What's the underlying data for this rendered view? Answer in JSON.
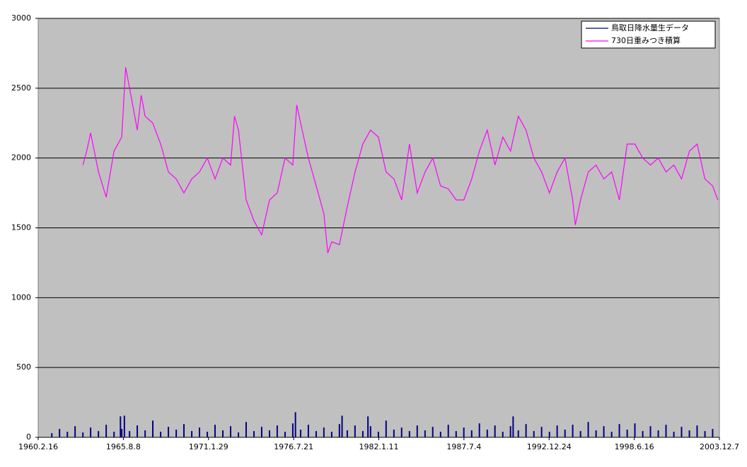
{
  "chart_data": {
    "type": "line",
    "xlim": [
      "1960.2.16",
      "2003.12.7"
    ],
    "xticks": [
      "1960.2.16",
      "1965.8.8",
      "1971.1.29",
      "1976.7.21",
      "1982.1.11",
      "1987.7.4",
      "1992.12.24",
      "1998.6.16",
      "2003.12.7"
    ],
    "ylim": [
      0,
      3000
    ],
    "yticks": [
      0,
      500,
      1000,
      1500,
      2000,
      2500,
      3000
    ],
    "grid": true,
    "legend": "top-right",
    "series": [
      {
        "name": "鳥取日降水量生データ",
        "color": "#000080",
        "style": "spikes",
        "x": [
          "1961.1.1",
          "1961.7.1",
          "1962.1.1",
          "1962.7.1",
          "1963.1.1",
          "1963.7.1",
          "1964.1.1",
          "1964.7.1",
          "1965.1.1",
          "1965.6.1",
          "1965.7.1",
          "1965.9.1",
          "1966.1.1",
          "1966.7.1",
          "1967.1.1",
          "1967.7.1",
          "1968.1.1",
          "1968.7.1",
          "1969.1.1",
          "1969.7.1",
          "1970.1.1",
          "1970.7.1",
          "1971.1.1",
          "1971.7.1",
          "1972.1.1",
          "1972.7.1",
          "1973.1.1",
          "1973.7.1",
          "1974.1.1",
          "1974.7.1",
          "1975.1.1",
          "1975.7.1",
          "1976.1.1",
          "1976.7.1",
          "1976.9.1",
          "1977.1.1",
          "1977.7.1",
          "1978.1.1",
          "1978.7.1",
          "1979.1.1",
          "1979.7.1",
          "1979.9.1",
          "1980.1.1",
          "1980.7.1",
          "1981.1.1",
          "1981.5.1",
          "1981.7.1",
          "1982.1.1",
          "1982.7.1",
          "1983.1.1",
          "1983.7.1",
          "1984.1.1",
          "1984.7.1",
          "1985.1.1",
          "1985.7.1",
          "1986.1.1",
          "1986.7.1",
          "1987.1.1",
          "1987.7.1",
          "1988.1.1",
          "1988.7.1",
          "1989.1.1",
          "1989.7.1",
          "1990.1.1",
          "1990.7.1",
          "1990.9.1",
          "1991.1.1",
          "1991.7.1",
          "1992.1.1",
          "1992.7.1",
          "1993.1.1",
          "1993.7.1",
          "1994.1.1",
          "1994.7.1",
          "1995.1.1",
          "1995.7.1",
          "1996.1.1",
          "1996.7.1",
          "1997.1.1",
          "1997.7.1",
          "1998.1.1",
          "1998.7.1",
          "1999.1.1",
          "1999.7.1",
          "2000.1.1",
          "2000.7.1",
          "2001.1.1",
          "2001.7.1",
          "2002.1.1",
          "2002.7.1",
          "2003.1.1",
          "2003.7.1"
        ],
        "values": [
          30,
          60,
          40,
          80,
          35,
          70,
          45,
          90,
          40,
          150,
          60,
          155,
          45,
          85,
          50,
          120,
          40,
          75,
          55,
          95,
          45,
          70,
          40,
          90,
          50,
          80,
          35,
          110,
          45,
          75,
          50,
          85,
          40,
          100,
          180,
          55,
          90,
          45,
          70,
          40,
          95,
          155,
          50,
          85,
          45,
          150,
          80,
          40,
          120,
          55,
          70,
          45,
          85,
          50,
          75,
          40,
          90,
          45,
          70,
          50,
          100,
          55,
          85,
          40,
          80,
          150,
          50,
          95,
          45,
          75,
          40,
          85,
          55,
          90,
          45,
          110,
          50,
          80,
          40,
          95,
          55,
          100,
          45,
          80,
          50,
          90,
          40,
          75,
          50,
          85,
          45,
          60
        ]
      },
      {
        "name": "730日重みつき積算",
        "color": "#ff00ff",
        "x": [
          "1963.1.1",
          "1963.4.1",
          "1963.7.1",
          "1964.1.1",
          "1964.7.1",
          "1965.1.1",
          "1965.7.1",
          "1965.10.1",
          "1966.1.1",
          "1966.7.1",
          "1966.10.1",
          "1967.1.1",
          "1967.7.1",
          "1968.1.1",
          "1968.7.1",
          "1969.1.1",
          "1969.7.1",
          "1970.1.1",
          "1970.7.1",
          "1971.1.1",
          "1971.7.1",
          "1972.1.1",
          "1972.7.1",
          "1972.10.1",
          "1973.1.1",
          "1973.7.1",
          "1974.1.1",
          "1974.7.1",
          "1975.1.1",
          "1975.7.1",
          "1976.1.1",
          "1976.7.1",
          "1976.10.1",
          "1977.1.1",
          "1977.7.1",
          "1978.1.1",
          "1978.7.1",
          "1978.10.1",
          "1979.1.1",
          "1979.7.1",
          "1980.1.1",
          "1980.7.1",
          "1981.1.1",
          "1981.7.1",
          "1982.1.1",
          "1982.7.1",
          "1983.1.1",
          "1983.7.1",
          "1984.1.1",
          "1984.7.1",
          "1985.1.1",
          "1985.7.1",
          "1986.1.1",
          "1986.7.1",
          "1987.1.1",
          "1987.7.1",
          "1988.1.1",
          "1988.7.1",
          "1989.1.1",
          "1989.7.1",
          "1990.1.1",
          "1990.7.1",
          "1991.1.1",
          "1991.7.1",
          "1992.1.1",
          "1992.7.1",
          "1993.1.1",
          "1993.7.1",
          "1994.1.1",
          "1994.7.1",
          "1994.9.1",
          "1995.1.1",
          "1995.7.1",
          "1996.1.1",
          "1996.7.1",
          "1997.1.1",
          "1997.7.1",
          "1998.1.1",
          "1998.7.1",
          "1999.1.1",
          "1999.7.1",
          "2000.1.1",
          "2000.7.1",
          "2001.1.1",
          "2001.7.1",
          "2002.1.1",
          "2002.7.1",
          "2003.1.1",
          "2003.7.1",
          "2003.11.1"
        ],
        "values": [
          1950,
          2050,
          2180,
          1900,
          1720,
          2050,
          2150,
          2650,
          2500,
          2200,
          2450,
          2300,
          2250,
          2100,
          1900,
          1850,
          1750,
          1850,
          1900,
          2000,
          1850,
          2000,
          1950,
          2300,
          2200,
          1700,
          1550,
          1450,
          1700,
          1750,
          2000,
          1950,
          2380,
          2250,
          2000,
          1800,
          1600,
          1320,
          1400,
          1380,
          1650,
          1900,
          2100,
          2200,
          2150,
          1900,
          1850,
          1700,
          2100,
          1750,
          1900,
          2000,
          1800,
          1780,
          1700,
          1700,
          1850,
          2050,
          2200,
          1950,
          2150,
          2050,
          2300,
          2200,
          2000,
          1900,
          1750,
          1900,
          2000,
          1700,
          1520,
          1700,
          1900,
          1950,
          1850,
          1900,
          1700,
          2100,
          2100,
          2000,
          1950,
          2000,
          1900,
          1950,
          1850,
          2050,
          2100,
          1850,
          1800,
          1700
        ]
      }
    ]
  }
}
